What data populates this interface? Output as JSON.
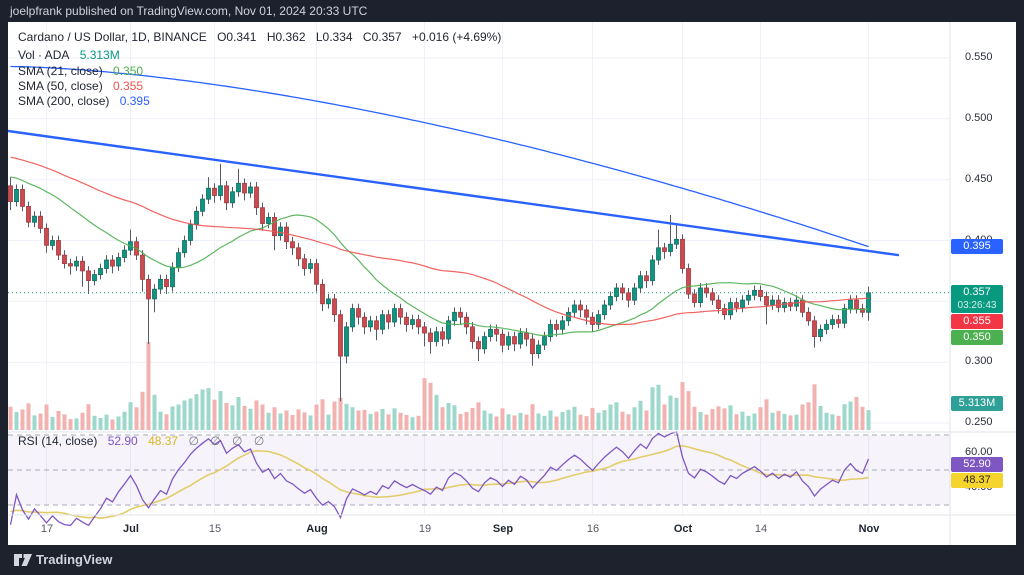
{
  "top_bar": {
    "text": "joelpfrank published on TradingView.com, Nov 01, 2024 20:33 UTC"
  },
  "footer": {
    "brand": "TradingView"
  },
  "panel": {
    "legend": {
      "title": "Cardano / US Dollar, 1D, BINANCE",
      "open": "O0.341",
      "high": "H0.362",
      "low": "L0.334",
      "close": "C0.357",
      "change": "+0.016 (+4.69%)",
      "volume_label": "Vol · ADA",
      "volume_value": "5.313M",
      "sma21_label": "SMA (21, close)",
      "sma21_value": "0.350",
      "sma50_label": "SMA (50, close)",
      "sma50_value": "0.355",
      "sma200_label": "SMA (200, close)",
      "sma200_value": "0.395",
      "rsi_label": "RSI (14, close)",
      "rsi_value": "52.90",
      "rsi_ma_value": "48.37",
      "rsi_empty": "∅ ∅ ∅ ∅"
    },
    "price_axis": {
      "labels": [
        {
          "text": "0.550",
          "price": 0.55
        },
        {
          "text": "0.500",
          "price": 0.5
        },
        {
          "text": "0.450",
          "price": 0.45
        },
        {
          "text": "0.400",
          "price": 0.4
        },
        {
          "text": "0.300",
          "price": 0.3
        },
        {
          "text": "0.250",
          "price": 0.25
        }
      ],
      "badges": {
        "sma200": {
          "text": "0.395",
          "color": "#2962ff"
        },
        "last_price": {
          "text": "0.357",
          "countdown": "03:26:43",
          "color": "#089981"
        },
        "sma50": {
          "text": "0.355",
          "color": "#f23645"
        },
        "sma21": {
          "text": "0.350",
          "color": "#4caf50"
        },
        "volume": {
          "text": "5.313M",
          "color": "#2fa098"
        }
      }
    },
    "rsi_axis": {
      "labels": [
        {
          "text": "60.00",
          "value": 60
        },
        {
          "text": "40.00",
          "value": 40
        }
      ],
      "badges": {
        "rsi": {
          "text": "52.90",
          "color": "#7e57c2"
        },
        "rsi_ma": {
          "text": "48.37",
          "color": "#f5d42d",
          "text_color": "#2a2617"
        }
      }
    },
    "time_axis": {
      "ticks": [
        {
          "label": "17",
          "index": 6,
          "major": false
        },
        {
          "label": "Jul",
          "index": 20,
          "major": true
        },
        {
          "label": "15",
          "index": 34,
          "major": false
        },
        {
          "label": "Aug",
          "index": 51,
          "major": true
        },
        {
          "label": "19",
          "index": 69,
          "major": false
        },
        {
          "label": "Sep",
          "index": 82,
          "major": true
        },
        {
          "label": "16",
          "index": 97,
          "major": false
        },
        {
          "label": "Oct",
          "index": 112,
          "major": true
        },
        {
          "label": "14",
          "index": 125,
          "major": false
        },
        {
          "label": "Nov",
          "index": 143,
          "major": true
        }
      ]
    }
  },
  "chart_data": {
    "type": "candlestick",
    "symbol": "Cardano / US Dollar",
    "interval": "1D",
    "exchange": "BINANCE",
    "date_range": "Jun 11 2024 - Nov 01 2024",
    "last_bar": {
      "open": 0.341,
      "high": 0.362,
      "low": 0.334,
      "close": 0.357,
      "change": 0.016,
      "change_pct": 4.69,
      "volume": "5.313M"
    },
    "price_axis_range": [
      0.25,
      0.55
    ],
    "grid_prices": [
      0.55,
      0.5,
      0.45,
      0.4,
      0.35,
      0.3,
      0.25
    ],
    "last_price_line": 0.357,
    "candles": [
      [
        0.445,
        0.452,
        0.425,
        0.432
      ],
      [
        0.432,
        0.446,
        0.428,
        0.442
      ],
      [
        0.442,
        0.446,
        0.424,
        0.428
      ],
      [
        0.428,
        0.432,
        0.411,
        0.415
      ],
      [
        0.415,
        0.424,
        0.411,
        0.42
      ],
      [
        0.42,
        0.424,
        0.406,
        0.41
      ],
      [
        0.41,
        0.414,
        0.39,
        0.396
      ],
      [
        0.396,
        0.404,
        0.392,
        0.4
      ],
      [
        0.4,
        0.404,
        0.384,
        0.388
      ],
      [
        0.388,
        0.392,
        0.377,
        0.381
      ],
      [
        0.381,
        0.385,
        0.372,
        0.379
      ],
      [
        0.379,
        0.387,
        0.375,
        0.383
      ],
      [
        0.383,
        0.387,
        0.362,
        0.375
      ],
      [
        0.375,
        0.379,
        0.356,
        0.367
      ],
      [
        0.367,
        0.376,
        0.363,
        0.372
      ],
      [
        0.372,
        0.381,
        0.368,
        0.377
      ],
      [
        0.377,
        0.388,
        0.373,
        0.384
      ],
      [
        0.384,
        0.388,
        0.373,
        0.379
      ],
      [
        0.379,
        0.39,
        0.375,
        0.386
      ],
      [
        0.386,
        0.396,
        0.382,
        0.392
      ],
      [
        0.392,
        0.409,
        0.388,
        0.399
      ],
      [
        0.399,
        0.403,
        0.384,
        0.388
      ],
      [
        0.388,
        0.392,
        0.358,
        0.368
      ],
      [
        0.368,
        0.372,
        0.315,
        0.352
      ],
      [
        0.352,
        0.364,
        0.341,
        0.36
      ],
      [
        0.36,
        0.372,
        0.356,
        0.368
      ],
      [
        0.368,
        0.372,
        0.356,
        0.362
      ],
      [
        0.362,
        0.382,
        0.358,
        0.378
      ],
      [
        0.378,
        0.394,
        0.374,
        0.39
      ],
      [
        0.39,
        0.404,
        0.386,
        0.4
      ],
      [
        0.4,
        0.417,
        0.396,
        0.413
      ],
      [
        0.413,
        0.428,
        0.409,
        0.424
      ],
      [
        0.424,
        0.438,
        0.42,
        0.434
      ],
      [
        0.434,
        0.452,
        0.43,
        0.443
      ],
      [
        0.443,
        0.447,
        0.431,
        0.437
      ],
      [
        0.437,
        0.463,
        0.433,
        0.445
      ],
      [
        0.445,
        0.449,
        0.425,
        0.431
      ],
      [
        0.431,
        0.444,
        0.427,
        0.44
      ],
      [
        0.44,
        0.459,
        0.436,
        0.447
      ],
      [
        0.447,
        0.451,
        0.433,
        0.439
      ],
      [
        0.439,
        0.448,
        0.435,
        0.444
      ],
      [
        0.444,
        0.448,
        0.421,
        0.427
      ],
      [
        0.427,
        0.431,
        0.408,
        0.414
      ],
      [
        0.414,
        0.423,
        0.41,
        0.419
      ],
      [
        0.419,
        0.423,
        0.392,
        0.404
      ],
      [
        0.404,
        0.415,
        0.4,
        0.411
      ],
      [
        0.411,
        0.415,
        0.393,
        0.399
      ],
      [
        0.399,
        0.403,
        0.388,
        0.394
      ],
      [
        0.394,
        0.398,
        0.379,
        0.385
      ],
      [
        0.385,
        0.389,
        0.371,
        0.377
      ],
      [
        0.377,
        0.385,
        0.373,
        0.381
      ],
      [
        0.381,
        0.385,
        0.358,
        0.364
      ],
      [
        0.364,
        0.368,
        0.342,
        0.348
      ],
      [
        0.348,
        0.356,
        0.344,
        0.352
      ],
      [
        0.352,
        0.356,
        0.333,
        0.339
      ],
      [
        0.339,
        0.343,
        0.268,
        0.305
      ],
      [
        0.305,
        0.333,
        0.299,
        0.329
      ],
      [
        0.329,
        0.348,
        0.325,
        0.344
      ],
      [
        0.344,
        0.348,
        0.331,
        0.337
      ],
      [
        0.337,
        0.341,
        0.323,
        0.329
      ],
      [
        0.329,
        0.338,
        0.325,
        0.334
      ],
      [
        0.334,
        0.338,
        0.318,
        0.327
      ],
      [
        0.327,
        0.343,
        0.323,
        0.339
      ],
      [
        0.339,
        0.343,
        0.327,
        0.333
      ],
      [
        0.333,
        0.348,
        0.329,
        0.344
      ],
      [
        0.344,
        0.348,
        0.331,
        0.337
      ],
      [
        0.337,
        0.341,
        0.325,
        0.331
      ],
      [
        0.331,
        0.339,
        0.327,
        0.335
      ],
      [
        0.335,
        0.339,
        0.323,
        0.329
      ],
      [
        0.329,
        0.333,
        0.313,
        0.324
      ],
      [
        0.324,
        0.328,
        0.307,
        0.317
      ],
      [
        0.317,
        0.329,
        0.313,
        0.325
      ],
      [
        0.325,
        0.329,
        0.313,
        0.319
      ],
      [
        0.319,
        0.338,
        0.315,
        0.334
      ],
      [
        0.334,
        0.345,
        0.33,
        0.341
      ],
      [
        0.341,
        0.345,
        0.331,
        0.337
      ],
      [
        0.337,
        0.341,
        0.323,
        0.329
      ],
      [
        0.329,
        0.333,
        0.311,
        0.317
      ],
      [
        0.317,
        0.321,
        0.301,
        0.311
      ],
      [
        0.311,
        0.325,
        0.307,
        0.321
      ],
      [
        0.321,
        0.331,
        0.317,
        0.327
      ],
      [
        0.327,
        0.331,
        0.317,
        0.323
      ],
      [
        0.323,
        0.327,
        0.308,
        0.314
      ],
      [
        0.314,
        0.325,
        0.31,
        0.321
      ],
      [
        0.321,
        0.325,
        0.309,
        0.315
      ],
      [
        0.315,
        0.328,
        0.311,
        0.324
      ],
      [
        0.324,
        0.328,
        0.313,
        0.319
      ],
      [
        0.319,
        0.323,
        0.297,
        0.307
      ],
      [
        0.307,
        0.318,
        0.303,
        0.314
      ],
      [
        0.314,
        0.325,
        0.31,
        0.321
      ],
      [
        0.321,
        0.335,
        0.317,
        0.331
      ],
      [
        0.331,
        0.335,
        0.321,
        0.327
      ],
      [
        0.327,
        0.338,
        0.323,
        0.334
      ],
      [
        0.334,
        0.345,
        0.33,
        0.341
      ],
      [
        0.341,
        0.351,
        0.337,
        0.347
      ],
      [
        0.347,
        0.351,
        0.337,
        0.343
      ],
      [
        0.343,
        0.347,
        0.331,
        0.337
      ],
      [
        0.337,
        0.341,
        0.325,
        0.331
      ],
      [
        0.331,
        0.343,
        0.327,
        0.339
      ],
      [
        0.339,
        0.351,
        0.335,
        0.347
      ],
      [
        0.347,
        0.358,
        0.343,
        0.354
      ],
      [
        0.354,
        0.365,
        0.35,
        0.361
      ],
      [
        0.361,
        0.365,
        0.351,
        0.357
      ],
      [
        0.357,
        0.361,
        0.345,
        0.351
      ],
      [
        0.351,
        0.365,
        0.347,
        0.361
      ],
      [
        0.361,
        0.375,
        0.357,
        0.371
      ],
      [
        0.371,
        0.375,
        0.361,
        0.367
      ],
      [
        0.367,
        0.388,
        0.363,
        0.384
      ],
      [
        0.384,
        0.409,
        0.38,
        0.394
      ],
      [
        0.394,
        0.398,
        0.385,
        0.391
      ],
      [
        0.391,
        0.421,
        0.387,
        0.397
      ],
      [
        0.397,
        0.414,
        0.393,
        0.401
      ],
      [
        0.401,
        0.405,
        0.373,
        0.377
      ],
      [
        0.377,
        0.381,
        0.352,
        0.356
      ],
      [
        0.356,
        0.36,
        0.345,
        0.349
      ],
      [
        0.349,
        0.365,
        0.345,
        0.361
      ],
      [
        0.361,
        0.365,
        0.353,
        0.357
      ],
      [
        0.357,
        0.361,
        0.347,
        0.351
      ],
      [
        0.351,
        0.355,
        0.34,
        0.344
      ],
      [
        0.344,
        0.348,
        0.335,
        0.339
      ],
      [
        0.339,
        0.353,
        0.335,
        0.349
      ],
      [
        0.349,
        0.353,
        0.341,
        0.345
      ],
      [
        0.345,
        0.355,
        0.341,
        0.351
      ],
      [
        0.351,
        0.359,
        0.347,
        0.355
      ],
      [
        0.355,
        0.363,
        0.351,
        0.359
      ],
      [
        0.359,
        0.363,
        0.35,
        0.354
      ],
      [
        0.354,
        0.358,
        0.331,
        0.347
      ],
      [
        0.347,
        0.355,
        0.343,
        0.351
      ],
      [
        0.351,
        0.355,
        0.341,
        0.345
      ],
      [
        0.345,
        0.353,
        0.341,
        0.349
      ],
      [
        0.349,
        0.353,
        0.342,
        0.346
      ],
      [
        0.346,
        0.355,
        0.342,
        0.351
      ],
      [
        0.351,
        0.355,
        0.337,
        0.341
      ],
      [
        0.341,
        0.345,
        0.33,
        0.334
      ],
      [
        0.334,
        0.338,
        0.312,
        0.321
      ],
      [
        0.321,
        0.331,
        0.317,
        0.327
      ],
      [
        0.327,
        0.335,
        0.323,
        0.331
      ],
      [
        0.331,
        0.339,
        0.327,
        0.335
      ],
      [
        0.335,
        0.339,
        0.328,
        0.332
      ],
      [
        0.332,
        0.348,
        0.328,
        0.344
      ],
      [
        0.344,
        0.355,
        0.34,
        0.351
      ],
      [
        0.351,
        0.355,
        0.34,
        0.344
      ],
      [
        0.344,
        0.348,
        0.337,
        0.341
      ],
      [
        0.341,
        0.362,
        0.334,
        0.357
      ]
    ],
    "volumes_millions": [
      6.2,
      4.8,
      5.5,
      7.1,
      3.9,
      4.4,
      6.8,
      3.5,
      5.1,
      4.2,
      2.9,
      3.1,
      4.6,
      6.9,
      3.8,
      3.2,
      4.1,
      2.8,
      3.6,
      4.9,
      7.4,
      6.1,
      10.2,
      23.5,
      9.4,
      4.9,
      4.2,
      6.3,
      6.8,
      7.9,
      8.4,
      9.6,
      10.8,
      11.2,
      8.1,
      10.4,
      7.2,
      6.6,
      8.8,
      6.4,
      5.7,
      7.9,
      6.8,
      4.6,
      6.1,
      4.4,
      5.2,
      4.0,
      5.5,
      4.7,
      3.9,
      6.8,
      8.2,
      4.1,
      7.6,
      8.6,
      7.0,
      6.1,
      5.2,
      5.4,
      4.3,
      4.9,
      5.6,
      4.2,
      5.8,
      4.6,
      4.0,
      3.4,
      3.8,
      13.8,
      12.6,
      9.4,
      6.1,
      7.2,
      6.6,
      4.3,
      4.8,
      5.9,
      7.4,
      5.2,
      4.4,
      3.6,
      5.8,
      4.2,
      3.9,
      4.6,
      4.1,
      6.9,
      4.4,
      3.8,
      5.2,
      3.6,
      4.8,
      5.4,
      6.2,
      4.1,
      3.7,
      5.9,
      4.6,
      5.3,
      6.8,
      7.4,
      4.9,
      4.2,
      6.1,
      7.8,
      5.2,
      11.4,
      12.1,
      6.8,
      9.2,
      8.6,
      12.8,
      10.4,
      6.2,
      4.8,
      4.1,
      5.6,
      6.3,
      5.8,
      6.6,
      4.2,
      4.9,
      3.8,
      4.4,
      6.1,
      8.2,
      4.6,
      5.1,
      4.3,
      3.9,
      4.1,
      6.8,
      7.4,
      12.2,
      6.4,
      4.6,
      4.2,
      3.8,
      6.9,
      7.6,
      8.8,
      6.2,
      5.313
    ],
    "indicators": {
      "sma21": {
        "period": 21,
        "last_value": 0.35,
        "color": "#4caf50"
      },
      "sma50": {
        "period": 50,
        "last_value": 0.355,
        "color": "#ef5350"
      },
      "sma200": {
        "period": 200,
        "last_value": 0.395,
        "color": "#2962ff",
        "start_price": 0.543,
        "end_price": 0.395,
        "curve_exp": 1.6
      },
      "trendline": {
        "color": "#2962ff",
        "from_price": 0.49,
        "to_price": 0.388
      },
      "rsi": {
        "period": 14,
        "last_value": 52.9,
        "color": "#7e57c2",
        "bands": [
          70,
          50,
          30
        ]
      },
      "rsi_ma": {
        "period": 14,
        "last_value": 48.37,
        "color": "#e3cd6b"
      }
    },
    "colors": {
      "up_fill": "#119482",
      "up_stroke": "#0c6e60",
      "down_fill": "#cc4b50",
      "down_stroke": "#9f3a3e",
      "wick": "#555a64",
      "vol_up": "#9ed8cc",
      "vol_down": "#f2b3b0",
      "grid": "#eef1f7",
      "last_price_line": "#089981",
      "rsi_band_fill": "#7e57c2",
      "rsi_dash": "#a8abb5"
    }
  }
}
